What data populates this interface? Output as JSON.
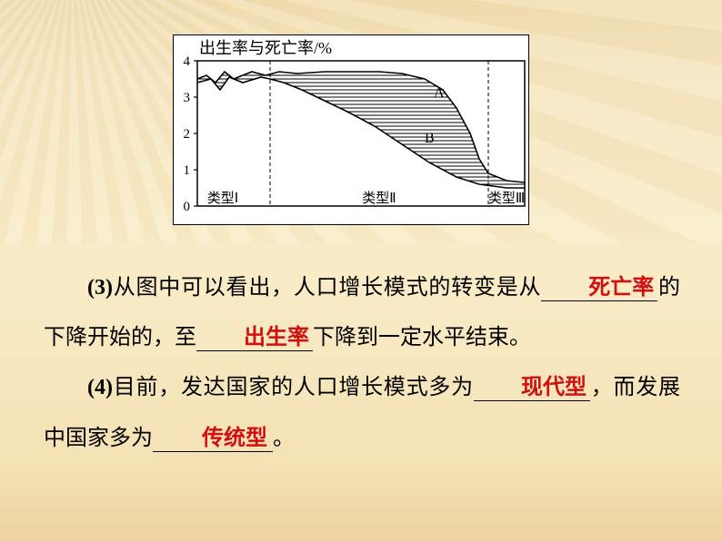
{
  "chart": {
    "type": "line",
    "title": "出生率与死亡率/%",
    "title_fontsize": 18,
    "ylim": [
      0,
      4
    ],
    "yticks": [
      0,
      1,
      2,
      3,
      4
    ],
    "x_segments": [
      "类型Ⅰ",
      "类型Ⅱ",
      "类型Ⅲ"
    ],
    "divider_x": [
      80,
      320
    ],
    "curve_A": {
      "label": "A",
      "label_pos": [
        260,
        40
      ],
      "points": [
        [
          0,
          3.5
        ],
        [
          10,
          3.6
        ],
        [
          20,
          3.4
        ],
        [
          30,
          3.7
        ],
        [
          40,
          3.5
        ],
        [
          60,
          3.7
        ],
        [
          75,
          3.6
        ],
        [
          90,
          3.7
        ],
        [
          110,
          3.65
        ],
        [
          140,
          3.7
        ],
        [
          170,
          3.7
        ],
        [
          200,
          3.7
        ],
        [
          225,
          3.65
        ],
        [
          250,
          3.5
        ],
        [
          270,
          3.2
        ],
        [
          285,
          2.7
        ],
        [
          300,
          2.0
        ],
        [
          310,
          1.3
        ],
        [
          320,
          0.9
        ],
        [
          340,
          0.7
        ],
        [
          360,
          0.65
        ]
      ]
    },
    "curve_B": {
      "label": "B",
      "label_pos": [
        250,
        90
      ],
      "points": [
        [
          0,
          3.4
        ],
        [
          15,
          3.5
        ],
        [
          25,
          3.2
        ],
        [
          35,
          3.55
        ],
        [
          50,
          3.4
        ],
        [
          70,
          3.55
        ],
        [
          80,
          3.5
        ],
        [
          95,
          3.4
        ],
        [
          115,
          3.2
        ],
        [
          140,
          2.9
        ],
        [
          165,
          2.6
        ],
        [
          195,
          2.2
        ],
        [
          225,
          1.7
        ],
        [
          255,
          1.2
        ],
        [
          285,
          0.8
        ],
        [
          310,
          0.6
        ],
        [
          340,
          0.5
        ],
        [
          360,
          0.5
        ]
      ]
    },
    "hatch_region": true,
    "colors": {
      "bg": "#ffffff",
      "axis": "#000000",
      "curve": "#000000",
      "hatch": "#000000",
      "divider": "#000000"
    },
    "stroke_width": 1.6
  },
  "text": {
    "q3_prefix": "(3)",
    "q3_part1": "从图中可以看出，人口增长模式的转变是从",
    "answer1": "死亡率",
    "q3_part2": "的下降开始的，至",
    "answer2": "出生率",
    "q3_part3": "下降到一定水平结束。",
    "q4_prefix": "(4)",
    "q4_part1": "目前，发达国家的人口增长模式多为",
    "answer3": "现代型",
    "q4_part2": "，而发展中国家多为",
    "answer4": "传统型",
    "q4_part3": "。"
  }
}
